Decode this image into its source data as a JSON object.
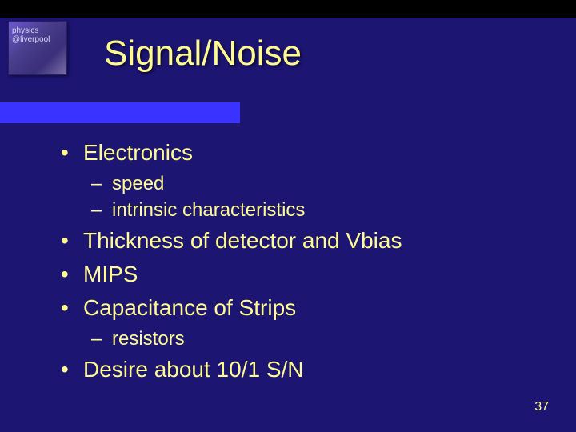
{
  "slide": {
    "title": "Signal/Noise",
    "page_number": "37",
    "colors": {
      "background": "#1c1572",
      "topbar": "#000000",
      "underline": "#3a33ff",
      "text": "#fffb91"
    },
    "bullets": [
      {
        "level": 1,
        "text": "Electronics"
      },
      {
        "level": 2,
        "text": "speed"
      },
      {
        "level": 2,
        "text": "intrinsic characteristics"
      },
      {
        "level": 1,
        "text": "Thickness of detector and Vbias"
      },
      {
        "level": 1,
        "text": "MIPS"
      },
      {
        "level": 1,
        "text": "Capacitance of Strips"
      },
      {
        "level": 2,
        "text": "resistors"
      },
      {
        "level": 1,
        "text": "Desire about 10/1 S/N"
      }
    ],
    "logo_label": "physics @liverpool"
  }
}
